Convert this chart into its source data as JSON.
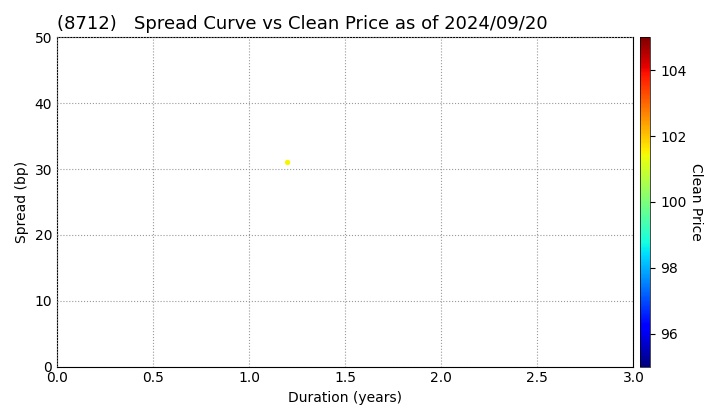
{
  "title": "(8712)   Spread Curve vs Clean Price as of 2024/09/20",
  "xlabel": "Duration (years)",
  "ylabel": "Spread (bp)",
  "colorbar_label": "Clean Price",
  "xlim": [
    0.0,
    3.0
  ],
  "ylim": [
    0,
    50
  ],
  "xticks": [
    0.0,
    0.5,
    1.0,
    1.5,
    2.0,
    2.5,
    3.0
  ],
  "yticks": [
    0,
    10,
    20,
    30,
    40,
    50
  ],
  "colorbar_ticks": [
    96,
    98,
    100,
    102,
    104
  ],
  "colorbar_vmin": 95,
  "colorbar_vmax": 105,
  "scatter_x": [
    1.2
  ],
  "scatter_y": [
    31
  ],
  "scatter_color": [
    101.5
  ],
  "scatter_size": 15,
  "background_color": "#ffffff",
  "grid_color": "#999999",
  "title_fontsize": 13,
  "label_fontsize": 10,
  "tick_fontsize": 10
}
